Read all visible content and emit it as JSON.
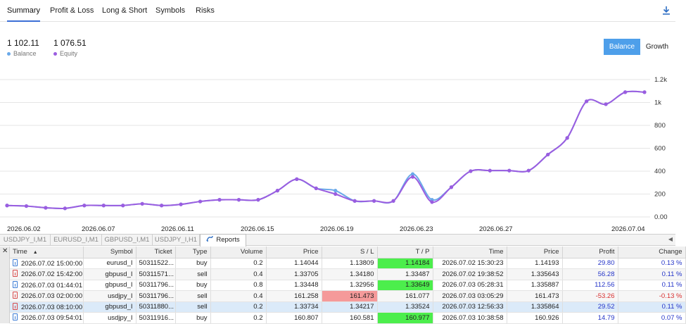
{
  "tabs": [
    "Summary",
    "Profit & Loss",
    "Long & Short",
    "Symbols",
    "Risks"
  ],
  "summary": {
    "balance_value": "1 102.11",
    "balance_label": "Balance",
    "equity_value": "1 076.51",
    "equity_label": "Equity"
  },
  "view_buttons": {
    "balance": "Balance",
    "growth": "Growth"
  },
  "colors": {
    "balance": "#6aa9e9",
    "equity": "#9b5de0",
    "accent": "#4e9fea",
    "tp_green": "#4cee4c",
    "sl_red": "#f59a9a"
  },
  "icons": {
    "download": "download-icon",
    "reports": "reports-icon",
    "close": "close-icon"
  },
  "chart_data": {
    "type": "line",
    "x_tick_labels": [
      "2026.06.02",
      "2026.06.07",
      "2026.06.11",
      "2026.06.15",
      "2026.06.19",
      "2026.06.23",
      "2026.06.27",
      "2026.07.04"
    ],
    "y_tick_labels": [
      "0.00",
      "200",
      "400",
      "600",
      "800",
      "1k",
      "1.2k"
    ],
    "ylim": [
      0,
      1200
    ],
    "grid": true,
    "series": [
      {
        "name": "Balance",
        "values": [
          100,
          95,
          80,
          75,
          100,
          100,
          100,
          115,
          100,
          110,
          135,
          150,
          150,
          150,
          230,
          330,
          250,
          230,
          140,
          140,
          140,
          375,
          150,
          260,
          400,
          405,
          405,
          405,
          545,
          690,
          1010,
          985,
          1090,
          1090
        ]
      },
      {
        "name": "Equity",
        "values": [
          100,
          95,
          80,
          75,
          100,
          100,
          100,
          115,
          100,
          110,
          135,
          150,
          150,
          150,
          230,
          330,
          250,
          200,
          140,
          140,
          140,
          350,
          130,
          260,
          400,
          405,
          405,
          405,
          545,
          690,
          1010,
          985,
          1090,
          1090
        ]
      }
    ]
  },
  "symbol_tabs": [
    "USDJPY_I,M1",
    "EURUSD_I,M1",
    "GBPUSD_I,M1",
    "USDJPY_I,H1",
    "Reports"
  ],
  "table": {
    "columns": [
      "Time",
      "Symbol",
      "Ticket",
      "Type",
      "Volume",
      "Price",
      "S / L",
      "T / P",
      "Time",
      "Price",
      "Profit",
      "Change"
    ],
    "rows": [
      {
        "open_time": "2026.07.02 15:00:00",
        "symbol": "eurusd_I",
        "ticket": "50311522...",
        "type": "buy",
        "volume": "0.2",
        "price": "1.14044",
        "sl": "1.13809",
        "tp": "1.14184",
        "close_time": "2026.07.02 15:30:23",
        "close_price": "1.14193",
        "profit": "29.80",
        "change": "0.13 %",
        "icon": "blue",
        "tp_hit": true,
        "sl_hit": false,
        "negative": false
      },
      {
        "open_time": "2026.07.02 15:42:00",
        "symbol": "gbpusd_I",
        "ticket": "50311571...",
        "type": "sell",
        "volume": "0.4",
        "price": "1.33705",
        "sl": "1.34180",
        "tp": "1.33487",
        "close_time": "2026.07.02 19:38:52",
        "close_price": "1.335643",
        "profit": "56.28",
        "change": "0.11 %",
        "icon": "red",
        "tp_hit": false,
        "sl_hit": false,
        "negative": false
      },
      {
        "open_time": "2026.07.03 01:44:01",
        "symbol": "gbpusd_I",
        "ticket": "50311796...",
        "type": "buy",
        "volume": "0.8",
        "price": "1.33448",
        "sl": "1.32956",
        "tp": "1.33649",
        "close_time": "2026.07.03 05:28:31",
        "close_price": "1.335887",
        "profit": "112.56",
        "change": "0.11 %",
        "icon": "blue",
        "tp_hit": true,
        "sl_hit": false,
        "negative": false
      },
      {
        "open_time": "2026.07.03 02:00:00",
        "symbol": "usdjpy_I",
        "ticket": "50311796...",
        "type": "sell",
        "volume": "0.4",
        "price": "161.258",
        "sl": "161.473",
        "tp": "161.077",
        "close_time": "2026.07.03 03:05:29",
        "close_price": "161.473",
        "profit": "-53.26",
        "change": "-0.13 %",
        "icon": "red",
        "tp_hit": false,
        "sl_hit": true,
        "negative": true
      },
      {
        "open_time": "2026.07.03 08:10:00",
        "symbol": "gbpusd_I",
        "ticket": "50311880...",
        "type": "sell",
        "volume": "0.2",
        "price": "1.33734",
        "sl": "1.34217",
        "tp": "1.33524",
        "close_time": "2026.07.03 12:56:33",
        "close_price": "1.335864",
        "profit": "29.52",
        "change": "0.11 %",
        "icon": "red",
        "tp_hit": false,
        "sl_hit": false,
        "negative": false
      },
      {
        "open_time": "2026.07.03 09:54:01",
        "symbol": "usdjpy_I",
        "ticket": "50311916...",
        "type": "buy",
        "volume": "0.2",
        "price": "160.807",
        "sl": "160.581",
        "tp": "160.977",
        "close_time": "2026.07.03 10:38:58",
        "close_price": "160.926",
        "profit": "14.79",
        "change": "0.07 %",
        "icon": "blue",
        "tp_hit": true,
        "sl_hit": false,
        "negative": false
      }
    ]
  }
}
